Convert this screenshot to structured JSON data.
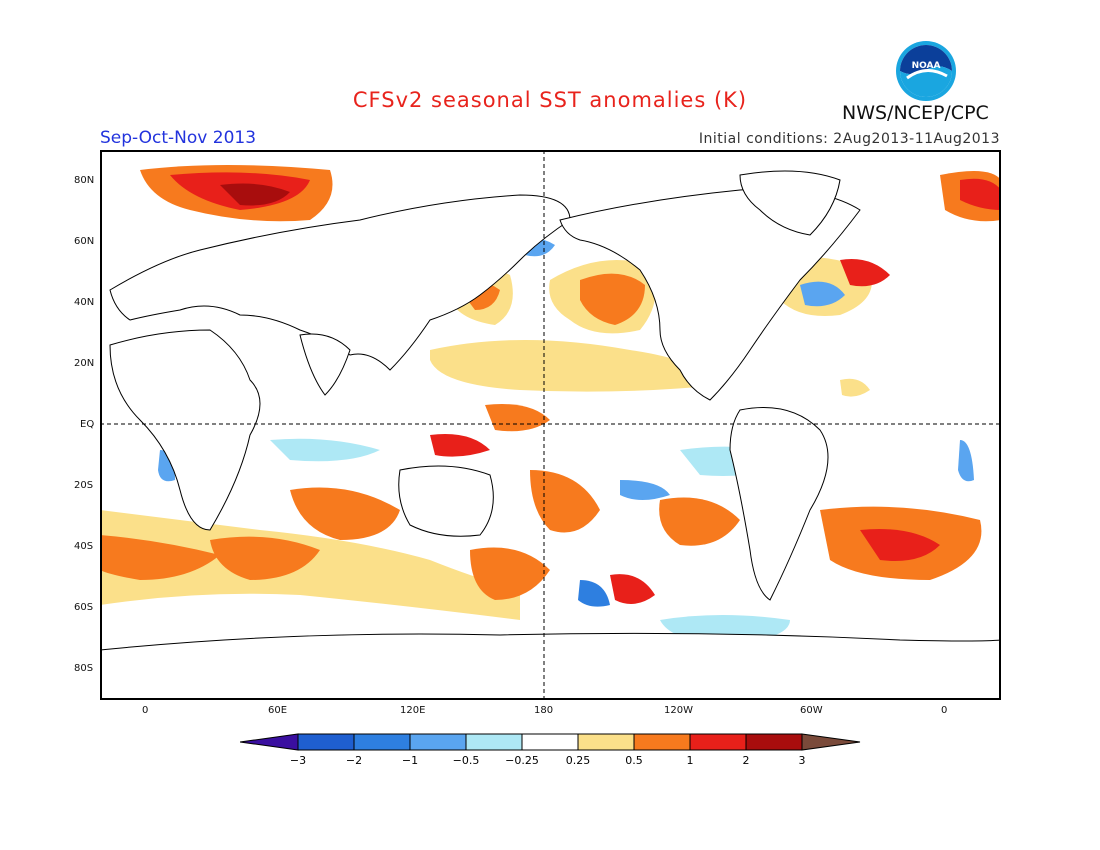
{
  "header": {
    "title": "CFSv2 seasonal SST anomalies (K)",
    "agency": "NWS/NCEP/CPC",
    "season": "Sep-Oct-Nov 2013",
    "initial_conditions": "Initial conditions: 2Aug2013-11Aug2013",
    "logo_text": "NOAA"
  },
  "map": {
    "lat_labels": [
      "80N",
      "60N",
      "40N",
      "20N",
      "EQ",
      "20S",
      "40S",
      "60S",
      "80S"
    ],
    "lon_labels": [
      "0",
      "60E",
      "120E",
      "180",
      "120W",
      "60W",
      "0"
    ]
  },
  "colorbar": {
    "ticks": [
      "-3",
      "-2",
      "-1",
      "-0.5",
      "-0.25",
      "0.25",
      "0.5",
      "1",
      "2",
      "3"
    ],
    "colors": [
      "#3a0fa0",
      "#1f5fd0",
      "#2e7fe0",
      "#5aa5f0",
      "#aee8f5",
      "#ffffff",
      "#fbe08a",
      "#f77a1e",
      "#e8201a",
      "#a80d0d",
      "#7a4a3a"
    ]
  },
  "colors": {
    "title": "#e8231c",
    "season": "#2233dd",
    "land_outline": "#000000"
  }
}
